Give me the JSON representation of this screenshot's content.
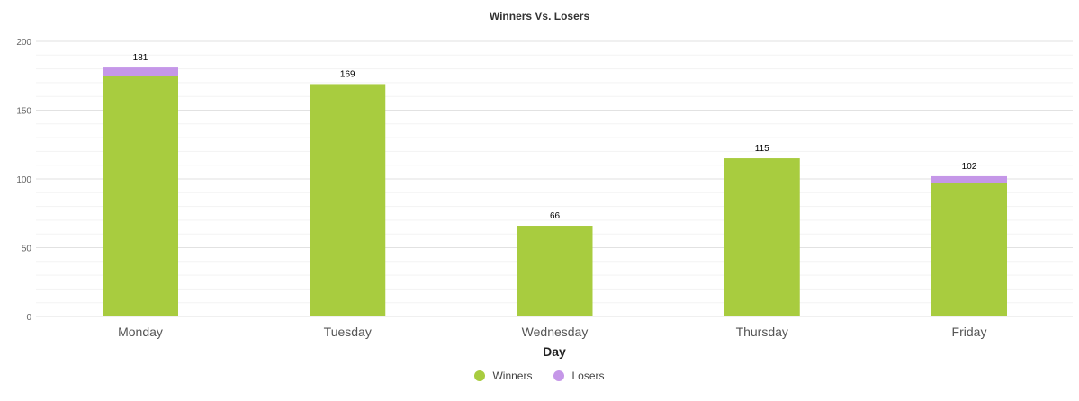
{
  "chart_data": {
    "type": "bar",
    "stacked": true,
    "title": "Winners Vs. Losers",
    "xlabel": "Day",
    "ylabel": "",
    "ylim": [
      0,
      200
    ],
    "yticks": [
      0,
      50,
      100,
      150,
      200
    ],
    "grid": true,
    "legend_position": "bottom",
    "categories": [
      "Monday",
      "Tuesday",
      "Wednesday",
      "Thursday",
      "Friday"
    ],
    "series": [
      {
        "name": "Winners",
        "color": "#a8cc3f",
        "values": [
          175,
          169,
          66,
          115,
          97
        ]
      },
      {
        "name": "Losers",
        "color": "#c597e8",
        "values": [
          6,
          0,
          0,
          0,
          5
        ]
      }
    ],
    "totals": [
      181,
      169,
      66,
      115,
      102
    ]
  }
}
